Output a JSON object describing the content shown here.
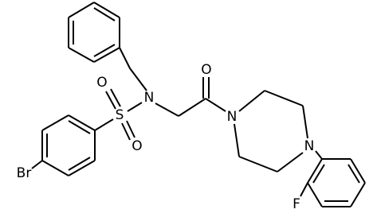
{
  "atoms": {
    "bromine": "Br",
    "sulfur": "S",
    "sulfonyl_oxygen_1": "O",
    "sulfonyl_oxygen_2": "O",
    "sulfonamide_nitrogen": "N",
    "carbonyl_oxygen": "O",
    "piperazine_nitrogen_1": "N",
    "piperazine_nitrogen_4": "N",
    "fluorine": "F"
  }
}
